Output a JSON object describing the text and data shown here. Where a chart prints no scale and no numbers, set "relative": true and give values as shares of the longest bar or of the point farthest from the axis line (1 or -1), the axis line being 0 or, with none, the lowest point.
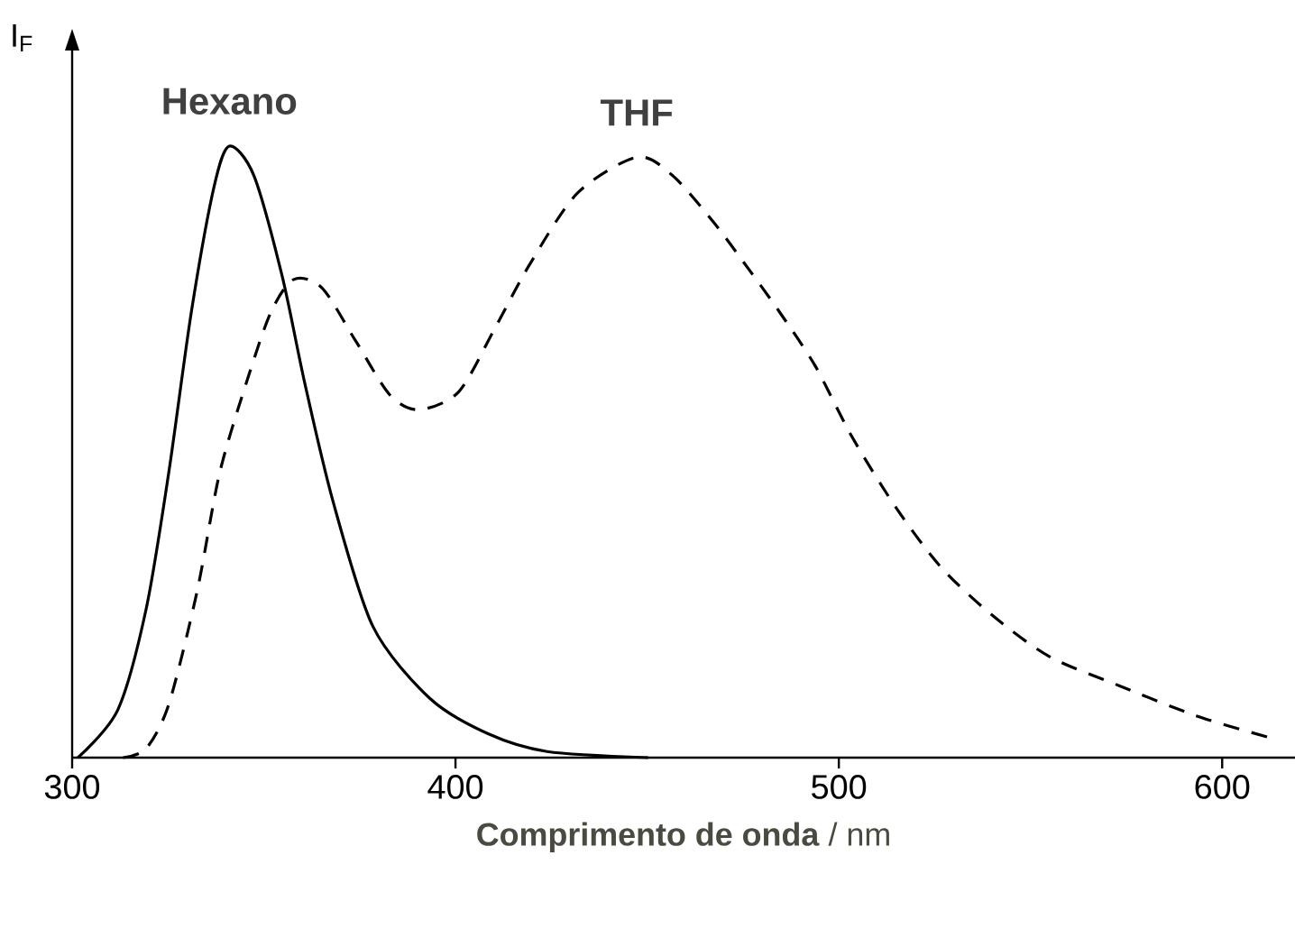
{
  "chart_data": {
    "type": "line",
    "relative": true,
    "ylabel": "I$_{F}$",
    "xlabel": "**Comprimento de onda** / nm",
    "xlim": [
      300,
      619
    ],
    "xticks": [
      300,
      400,
      500,
      600
    ],
    "grid": false,
    "marker": "none",
    "series": [
      {
        "name": "Hexano",
        "color": "#000000",
        "line_style": "solid",
        "x": [
          301.5,
          311.9,
          319.3,
          325.2,
          331.1,
          337,
          341,
          347.4,
          354.8,
          360.7,
          368.1,
          378.5,
          393.3,
          408.5,
          423.9,
          450.3
        ],
        "values": [
          0,
          0.078,
          0.243,
          0.466,
          0.729,
          0.933,
          1,
          0.952,
          0.787,
          0.612,
          0.418,
          0.214,
          0.097,
          0.039,
          0.01,
          0
        ]
      },
      {
        "name": "THF",
        "color": "#000000",
        "line_style": "dashed",
        "x": [
          313.3,
          319.3,
          325.2,
          332.6,
          338.5,
          345.9,
          351.9,
          357.8,
          365.2,
          374.1,
          382.9,
          390.4,
          400.8,
          410.1,
          419.4,
          431.8,
          447.3,
          456.6,
          467.4,
          476.7,
          484.5,
          493.8,
          503.4,
          515,
          526.7,
          540,
          555,
          573.4,
          593.4,
          611.7
        ],
        "values": [
          0,
          0.015,
          0.087,
          0.272,
          0.466,
          0.622,
          0.729,
          0.782,
          0.768,
          0.68,
          0.593,
          0.569,
          0.598,
          0.7,
          0.807,
          0.923,
          0.982,
          0.952,
          0.875,
          0.797,
          0.729,
          0.641,
          0.525,
          0.408,
          0.311,
          0.233,
          0.165,
          0.117,
          0.068,
          0.034
        ]
      }
    ]
  }
}
